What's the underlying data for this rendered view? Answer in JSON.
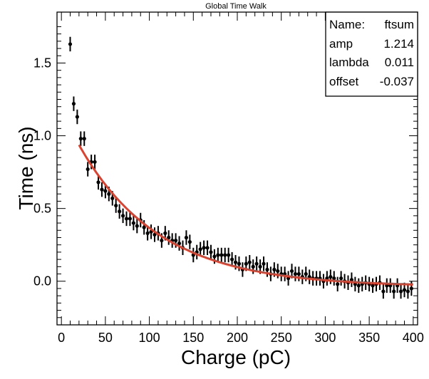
{
  "chart_data": {
    "type": "scatter",
    "title": "Global Time Walk",
    "xlabel": "Charge (pC)",
    "ylabel": "Time (ns)",
    "xlim": [
      -5,
      405
    ],
    "ylim": [
      -0.3,
      1.85
    ],
    "x_ticks": [
      "0",
      "50",
      "100",
      "150",
      "200",
      "250",
      "300",
      "350",
      "400"
    ],
    "y_ticks": [
      "0.0",
      "0.5",
      "1.0",
      "1.5"
    ],
    "grid": false,
    "colors": {
      "data": "#000000",
      "fit": "#d9432f"
    },
    "stats_box": {
      "position": "top-right",
      "rows": [
        {
          "label": "Name:",
          "value": "ftsum"
        },
        {
          "label": "amp",
          "value": "1.214"
        },
        {
          "label": "lambda",
          "value": "0.011"
        },
        {
          "label": "offset",
          "value": "-0.037"
        }
      ]
    },
    "fit": {
      "name": "ftsum",
      "amp": 1.214,
      "lambda": 0.011,
      "offset": -0.037,
      "x_range": [
        20,
        400
      ]
    },
    "series": [
      {
        "x": [
          10,
          14,
          18,
          22,
          26,
          30,
          34,
          38,
          42,
          46,
          50,
          54,
          58,
          62,
          66,
          70,
          74,
          78,
          82,
          86,
          90,
          94,
          98,
          102,
          106,
          110,
          114,
          118,
          122,
          126,
          130,
          134,
          138,
          142,
          146,
          150,
          154,
          158,
          162,
          166,
          170,
          174,
          178,
          182,
          186,
          190,
          194,
          198,
          202,
          206,
          210,
          214,
          218,
          222,
          226,
          230,
          234,
          238,
          242,
          246,
          250,
          254,
          258,
          262,
          266,
          270,
          274,
          278,
          282,
          286,
          290,
          294,
          298,
          302,
          306,
          310,
          314,
          318,
          322,
          326,
          330,
          334,
          338,
          342,
          346,
          350,
          354,
          358,
          362,
          366,
          370,
          374,
          378,
          382,
          386,
          390,
          394,
          398
        ],
        "y": [
          1.63,
          1.22,
          1.13,
          0.98,
          0.98,
          0.77,
          0.82,
          0.82,
          0.68,
          0.63,
          0.62,
          0.6,
          0.57,
          0.52,
          0.48,
          0.45,
          0.43,
          0.43,
          0.4,
          0.38,
          0.42,
          0.37,
          0.33,
          0.34,
          0.32,
          0.33,
          0.28,
          0.33,
          0.3,
          0.28,
          0.28,
          0.26,
          0.23,
          0.3,
          0.27,
          0.18,
          0.2,
          0.22,
          0.23,
          0.23,
          0.2,
          0.17,
          0.18,
          0.18,
          0.18,
          0.18,
          0.15,
          0.13,
          0.12,
          0.08,
          0.12,
          0.13,
          0.1,
          0.12,
          0.1,
          0.12,
          0.08,
          0.05,
          0.08,
          0.07,
          0.05,
          0.05,
          0.02,
          0.07,
          0.05,
          0.05,
          0.03,
          0.05,
          0.03,
          0.02,
          0.02,
          0.02,
          0.0,
          0.02,
          0.03,
          0.02,
          -0.02,
          0.02,
          0.0,
          -0.01,
          0.01,
          -0.02,
          -0.03,
          -0.02,
          -0.01,
          -0.02,
          -0.03,
          -0.02,
          -0.01,
          -0.07,
          -0.03,
          -0.03,
          -0.07,
          -0.03,
          -0.07,
          -0.06,
          -0.07,
          -0.05
        ],
        "yerr": 0.05
      }
    ]
  }
}
